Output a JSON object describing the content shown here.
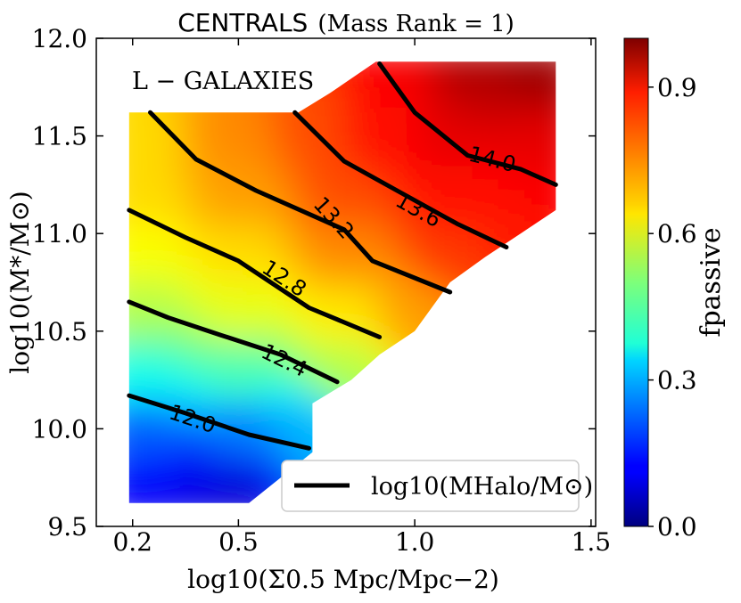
{
  "chart_data": {
    "type": "heatmap",
    "title_main": "CENTRALS",
    "title_sub": "(Mass Rank = 1)",
    "annotation": "L − GALAXIES",
    "xlabel": "log10(Σ0.5 Mpc/Mpc−2)",
    "ylabel": "log10(M*/M⊙)",
    "xlim": [
      0.1,
      1.5
    ],
    "ylim": [
      9.5,
      12.0
    ],
    "xticks": [
      0.2,
      0.5,
      1.0,
      1.5
    ],
    "xtick_labels": [
      "0.2",
      "0.5",
      "1.0",
      "1.5"
    ],
    "yticks": [
      9.5,
      10.0,
      10.5,
      11.0,
      11.5,
      12.0
    ],
    "ytick_labels": [
      "9.5",
      "10.0",
      "10.5",
      "11.0",
      "11.5",
      "12.0"
    ],
    "colorbar": {
      "label": "fpassive",
      "range": [
        0.0,
        1.0
      ],
      "ticks": [
        0.0,
        0.3,
        0.6,
        0.9
      ],
      "tick_labels": [
        "0.0",
        "0.3",
        "0.6",
        "0.9"
      ],
      "colormap": "jet"
    },
    "legend": {
      "label": "log10(MHalo/M⊙)",
      "placement": "lower-right"
    },
    "region": [
      [
        0.19,
        9.62
      ],
      [
        0.53,
        9.62
      ],
      [
        0.62,
        9.75
      ],
      [
        0.71,
        9.88
      ],
      [
        0.71,
        10.13
      ],
      [
        0.82,
        10.25
      ],
      [
        0.9,
        10.38
      ],
      [
        1.0,
        10.5
      ],
      [
        1.1,
        10.75
      ],
      [
        1.2,
        10.88
      ],
      [
        1.3,
        11.0
      ],
      [
        1.4,
        11.12
      ],
      [
        1.4,
        11.88
      ],
      [
        0.89,
        11.88
      ],
      [
        0.76,
        11.72
      ],
      [
        0.67,
        11.62
      ],
      [
        0.19,
        11.62
      ]
    ],
    "f_passive_samples": [
      {
        "x": 0.2,
        "y": 9.7,
        "v": 0.12
      },
      {
        "x": 0.4,
        "y": 9.7,
        "v": 0.1
      },
      {
        "x": 0.5,
        "y": 9.7,
        "v": 0.08
      },
      {
        "x": 0.2,
        "y": 10.0,
        "v": 0.22
      },
      {
        "x": 0.5,
        "y": 10.0,
        "v": 0.25
      },
      {
        "x": 0.7,
        "y": 10.0,
        "v": 0.3
      },
      {
        "x": 0.2,
        "y": 10.3,
        "v": 0.4
      },
      {
        "x": 0.5,
        "y": 10.3,
        "v": 0.45
      },
      {
        "x": 0.8,
        "y": 10.3,
        "v": 0.55
      },
      {
        "x": 0.2,
        "y": 10.6,
        "v": 0.55
      },
      {
        "x": 0.5,
        "y": 10.6,
        "v": 0.6
      },
      {
        "x": 0.8,
        "y": 10.6,
        "v": 0.65
      },
      {
        "x": 1.0,
        "y": 10.6,
        "v": 0.72
      },
      {
        "x": 0.2,
        "y": 10.9,
        "v": 0.62
      },
      {
        "x": 0.5,
        "y": 10.9,
        "v": 0.66
      },
      {
        "x": 0.8,
        "y": 10.9,
        "v": 0.74
      },
      {
        "x": 1.1,
        "y": 10.9,
        "v": 0.82
      },
      {
        "x": 1.3,
        "y": 11.05,
        "v": 0.85
      },
      {
        "x": 0.2,
        "y": 11.2,
        "v": 0.66
      },
      {
        "x": 0.5,
        "y": 11.2,
        "v": 0.72
      },
      {
        "x": 0.8,
        "y": 11.2,
        "v": 0.8
      },
      {
        "x": 1.1,
        "y": 11.2,
        "v": 0.86
      },
      {
        "x": 1.35,
        "y": 11.2,
        "v": 0.88
      },
      {
        "x": 0.2,
        "y": 11.5,
        "v": 0.66
      },
      {
        "x": 0.5,
        "y": 11.5,
        "v": 0.74
      },
      {
        "x": 0.7,
        "y": 11.55,
        "v": 0.8
      },
      {
        "x": 0.9,
        "y": 11.5,
        "v": 0.86
      },
      {
        "x": 1.1,
        "y": 11.5,
        "v": 0.9
      },
      {
        "x": 1.35,
        "y": 11.5,
        "v": 0.9
      },
      {
        "x": 0.95,
        "y": 11.8,
        "v": 0.88
      },
      {
        "x": 1.15,
        "y": 11.8,
        "v": 0.95
      },
      {
        "x": 1.35,
        "y": 11.8,
        "v": 0.97
      }
    ],
    "contours": [
      {
        "level": "12.0",
        "points": [
          [
            0.19,
            10.17
          ],
          [
            0.35,
            10.08
          ],
          [
            0.53,
            9.97
          ],
          [
            0.7,
            9.9
          ]
        ],
        "label_at": [
          0.37,
          10.05
        ]
      },
      {
        "level": "12.4",
        "points": [
          [
            0.19,
            10.65
          ],
          [
            0.3,
            10.57
          ],
          [
            0.45,
            10.48
          ],
          [
            0.62,
            10.38
          ],
          [
            0.78,
            10.24
          ]
        ],
        "label_at": [
          0.63,
          10.35
        ]
      },
      {
        "level": "12.8",
        "points": [
          [
            0.19,
            11.12
          ],
          [
            0.35,
            10.98
          ],
          [
            0.5,
            10.86
          ],
          [
            0.7,
            10.62
          ],
          [
            0.9,
            10.47
          ]
        ],
        "label_at": [
          0.63,
          10.77
        ]
      },
      {
        "level": "13.2",
        "points": [
          [
            0.25,
            11.62
          ],
          [
            0.38,
            11.38
          ],
          [
            0.55,
            11.22
          ],
          [
            0.8,
            11.02
          ],
          [
            0.88,
            10.86
          ],
          [
            1.1,
            10.7
          ]
        ],
        "label_at": [
          0.77,
          11.08
        ]
      },
      {
        "level": "13.6",
        "points": [
          [
            0.66,
            11.62
          ],
          [
            0.8,
            11.37
          ],
          [
            0.95,
            11.22
          ],
          [
            1.12,
            11.05
          ],
          [
            1.26,
            10.93
          ]
        ],
        "label_at": [
          1.01,
          11.12
        ]
      },
      {
        "level": "14.0",
        "points": [
          [
            0.9,
            11.87
          ],
          [
            1.0,
            11.62
          ],
          [
            1.15,
            11.4
          ],
          [
            1.3,
            11.33
          ],
          [
            1.4,
            11.25
          ]
        ],
        "label_at": [
          1.22,
          11.38
        ]
      }
    ]
  }
}
